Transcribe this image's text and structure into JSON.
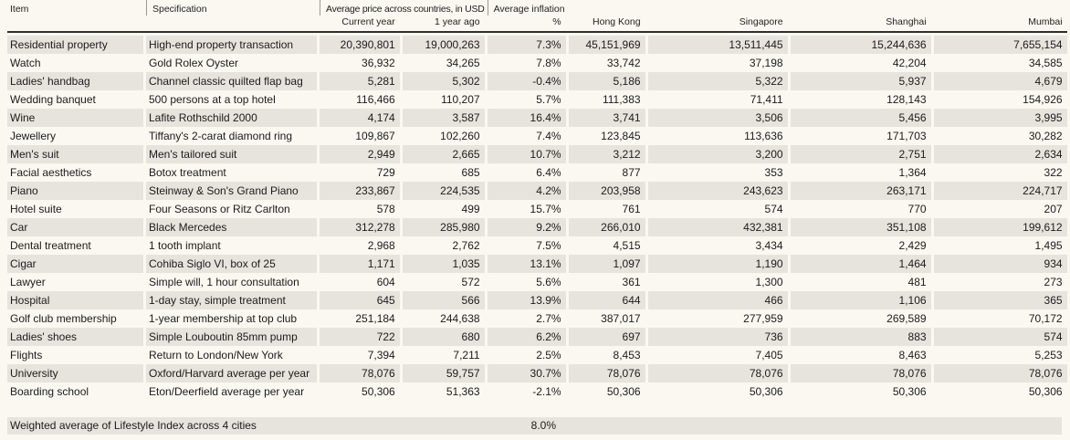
{
  "table": {
    "header": {
      "item": "Item",
      "specification": "Specification",
      "avg_price_group": "Average price across countries, in USD",
      "avg_inflation_group": "Average inflation",
      "sub": {
        "current_year": "Current year",
        "one_year_ago": "1 year ago",
        "percent": "%",
        "hong_kong": "Hong Kong",
        "singapore": "Singapore",
        "shanghai": "Shanghai",
        "mumbai": "Mumbai"
      }
    },
    "rows": [
      [
        "Residential property",
        "High-end property transaction",
        "20,390,801",
        "19,000,263",
        "7.3%",
        "45,151,969",
        "13,511,445",
        "15,244,636",
        "7,655,154"
      ],
      [
        "Watch",
        "Gold Rolex Oyster",
        "36,932",
        "34,265",
        "7.8%",
        "33,742",
        "37,198",
        "42,204",
        "34,585"
      ],
      [
        "Ladies' handbag",
        "Channel classic quilted flap bag",
        "5,281",
        "5,302",
        "-0.4%",
        "5,186",
        "5,322",
        "5,937",
        "4,679"
      ],
      [
        "Wedding banquet",
        "500 persons at a top hotel",
        "116,466",
        "110,207",
        "5.7%",
        "111,383",
        "71,411",
        "128,143",
        "154,926"
      ],
      [
        "Wine",
        "Lafite Rothschild 2000",
        "4,174",
        "3,587",
        "16.4%",
        "3,741",
        "3,506",
        "5,456",
        "3,995"
      ],
      [
        "Jewellery",
        "Tiffany's 2-carat diamond ring",
        "109,867",
        "102,260",
        "7.4%",
        "123,845",
        "113,636",
        "171,703",
        "30,282"
      ],
      [
        "Men's suit",
        "Men's tailored suit",
        "2,949",
        "2,665",
        "10.7%",
        "3,212",
        "3,200",
        "2,751",
        "2,634"
      ],
      [
        "Facial aesthetics",
        "Botox treatment",
        "729",
        "685",
        "6.4%",
        "877",
        "353",
        "1,364",
        "322"
      ],
      [
        "Piano",
        "Steinway & Son's Grand Piano",
        "233,867",
        "224,535",
        "4.2%",
        "203,958",
        "243,623",
        "263,171",
        "224,717"
      ],
      [
        "Hotel suite",
        "Four Seasons or Ritz Carlton",
        "578",
        "499",
        "15.7%",
        "761",
        "574",
        "770",
        "207"
      ],
      [
        "Car",
        "Black Mercedes",
        "312,278",
        "285,980",
        "9.2%",
        "266,010",
        "432,381",
        "351,108",
        "199,612"
      ],
      [
        "Dental treatment",
        "1 tooth implant",
        "2,968",
        "2,762",
        "7.5%",
        "4,515",
        "3,434",
        "2,429",
        "1,495"
      ],
      [
        "Cigar",
        "Cohiba Siglo VI, box of 25",
        "1,171",
        "1,035",
        "13.1%",
        "1,097",
        "1,190",
        "1,464",
        "934"
      ],
      [
        "Lawyer",
        "Simple will, 1 hour consultation",
        "604",
        "572",
        "5.6%",
        "361",
        "1,300",
        "481",
        "273"
      ],
      [
        "Hospital",
        "1-day stay, simple treatment",
        "645",
        "566",
        "13.9%",
        "644",
        "466",
        "1,106",
        "365"
      ],
      [
        "Golf club membership",
        "1-year membership at top club",
        "251,184",
        "244,638",
        "2.7%",
        "387,017",
        "277,959",
        "269,589",
        "70,172"
      ],
      [
        "Ladies' shoes",
        "Simple Louboutin 85mm pump",
        "722",
        "680",
        "6.2%",
        "697",
        "736",
        "883",
        "574"
      ],
      [
        "Flights",
        "Return to London/New York",
        "7,394",
        "7,211",
        "2.5%",
        "8,453",
        "7,405",
        "8,463",
        "5,253"
      ],
      [
        "University",
        "Oxford/Harvard average per year",
        "78,076",
        "59,757",
        "30.7%",
        "78,076",
        "78,076",
        "78,076",
        "78,076"
      ],
      [
        "Boarding school",
        "Eton/Deerfield average per year",
        "50,306",
        "51,363",
        "-2.1%",
        "50,306",
        "50,306",
        "50,306",
        "50,306"
      ]
    ],
    "footer": {
      "label": "Weighted average of Lifestyle Index across 4 cities",
      "value": "8.0%"
    }
  },
  "colors": {
    "background": "#FBF8F1",
    "row_stripe": "#E7E4DD",
    "header_rule": "#2E2E2E",
    "text": "#1B1B1B",
    "pipe_separator": "#9A9A9A"
  }
}
